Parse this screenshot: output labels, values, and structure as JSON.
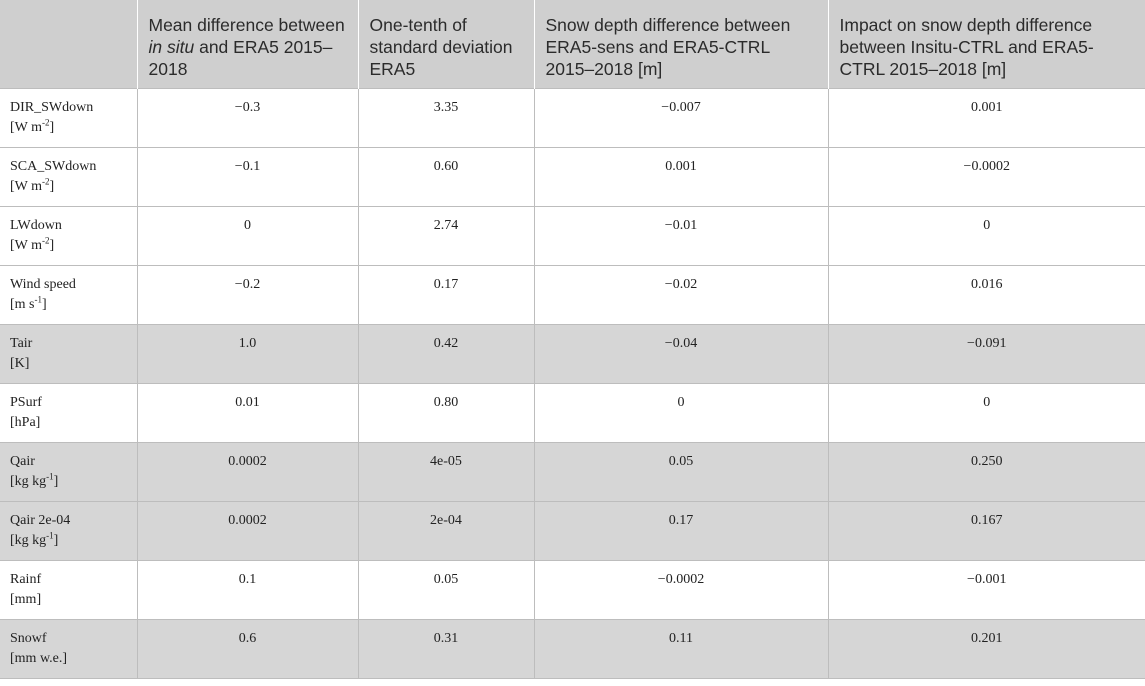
{
  "table": {
    "headers": [
      {
        "key": "param",
        "parts": [
          ""
        ]
      },
      {
        "key": "mean_diff",
        "parts": [
          "Mean difference between ",
          "in situ",
          " and ERA5 2015–2018"
        ]
      },
      {
        "key": "one_tenth_sd",
        "parts": [
          "One-tenth of standard deviation ERA5"
        ]
      },
      {
        "key": "snow_depth_diff",
        "parts": [
          "Snow depth difference between ERA5-sens and ERA5-CTRL 2015–2018 [m]"
        ]
      },
      {
        "key": "impact",
        "parts": [
          "Impact on snow depth difference between Insitu-CTRL and ERA5-CTRL 2015–2018 [m]"
        ]
      }
    ],
    "rows": [
      {
        "name": "DIR_SWdown",
        "unit_pre": "[W m",
        "unit_sup": "-2",
        "unit_post": "]",
        "values": [
          "−0.3",
          "3.35",
          "−0.007",
          "0.001"
        ],
        "shaded": false
      },
      {
        "name": "SCA_SWdown",
        "unit_pre": "[W m",
        "unit_sup": "-2",
        "unit_post": "]",
        "values": [
          "−0.1",
          "0.60",
          "0.001",
          "−0.0002"
        ],
        "shaded": false
      },
      {
        "name": "LWdown",
        "unit_pre": "[W m",
        "unit_sup": "-2",
        "unit_post": "]",
        "values": [
          "0",
          "2.74",
          "−0.01",
          "0"
        ],
        "shaded": false
      },
      {
        "name": "Wind speed",
        "unit_pre": "[m s",
        "unit_sup": "-1",
        "unit_post": "]",
        "values": [
          "−0.2",
          "0.17",
          "−0.02",
          "0.016"
        ],
        "shaded": false
      },
      {
        "name": "Tair",
        "unit_pre": "[K]",
        "unit_sup": "",
        "unit_post": "",
        "values": [
          "1.0",
          "0.42",
          "−0.04",
          "−0.091"
        ],
        "shaded": true
      },
      {
        "name": "PSurf",
        "unit_pre": "[hPa]",
        "unit_sup": "",
        "unit_post": "",
        "values": [
          "0.01",
          "0.80",
          "0",
          "0"
        ],
        "shaded": false
      },
      {
        "name": "Qair",
        "unit_pre": "[kg kg",
        "unit_sup": "-1",
        "unit_post": "]",
        "values": [
          "0.0002",
          "4e-05",
          "0.05",
          "0.250"
        ],
        "shaded": true
      },
      {
        "name": "Qair 2e-04",
        "unit_pre": "[kg kg",
        "unit_sup": "-1",
        "unit_post": "]",
        "values": [
          "0.0002",
          "2e-04",
          "0.17",
          "0.167"
        ],
        "shaded": true
      },
      {
        "name": "Rainf",
        "unit_pre": "[mm]",
        "unit_sup": "",
        "unit_post": "",
        "values": [
          "0.1",
          "0.05",
          "−0.0002",
          "−0.001"
        ],
        "shaded": false
      },
      {
        "name": "Snowf",
        "unit_pre": "[mm w.e.]",
        "unit_sup": "",
        "unit_post": "",
        "values": [
          "0.6",
          "0.31",
          "0.11",
          "0.201"
        ],
        "shaded": true
      }
    ]
  }
}
